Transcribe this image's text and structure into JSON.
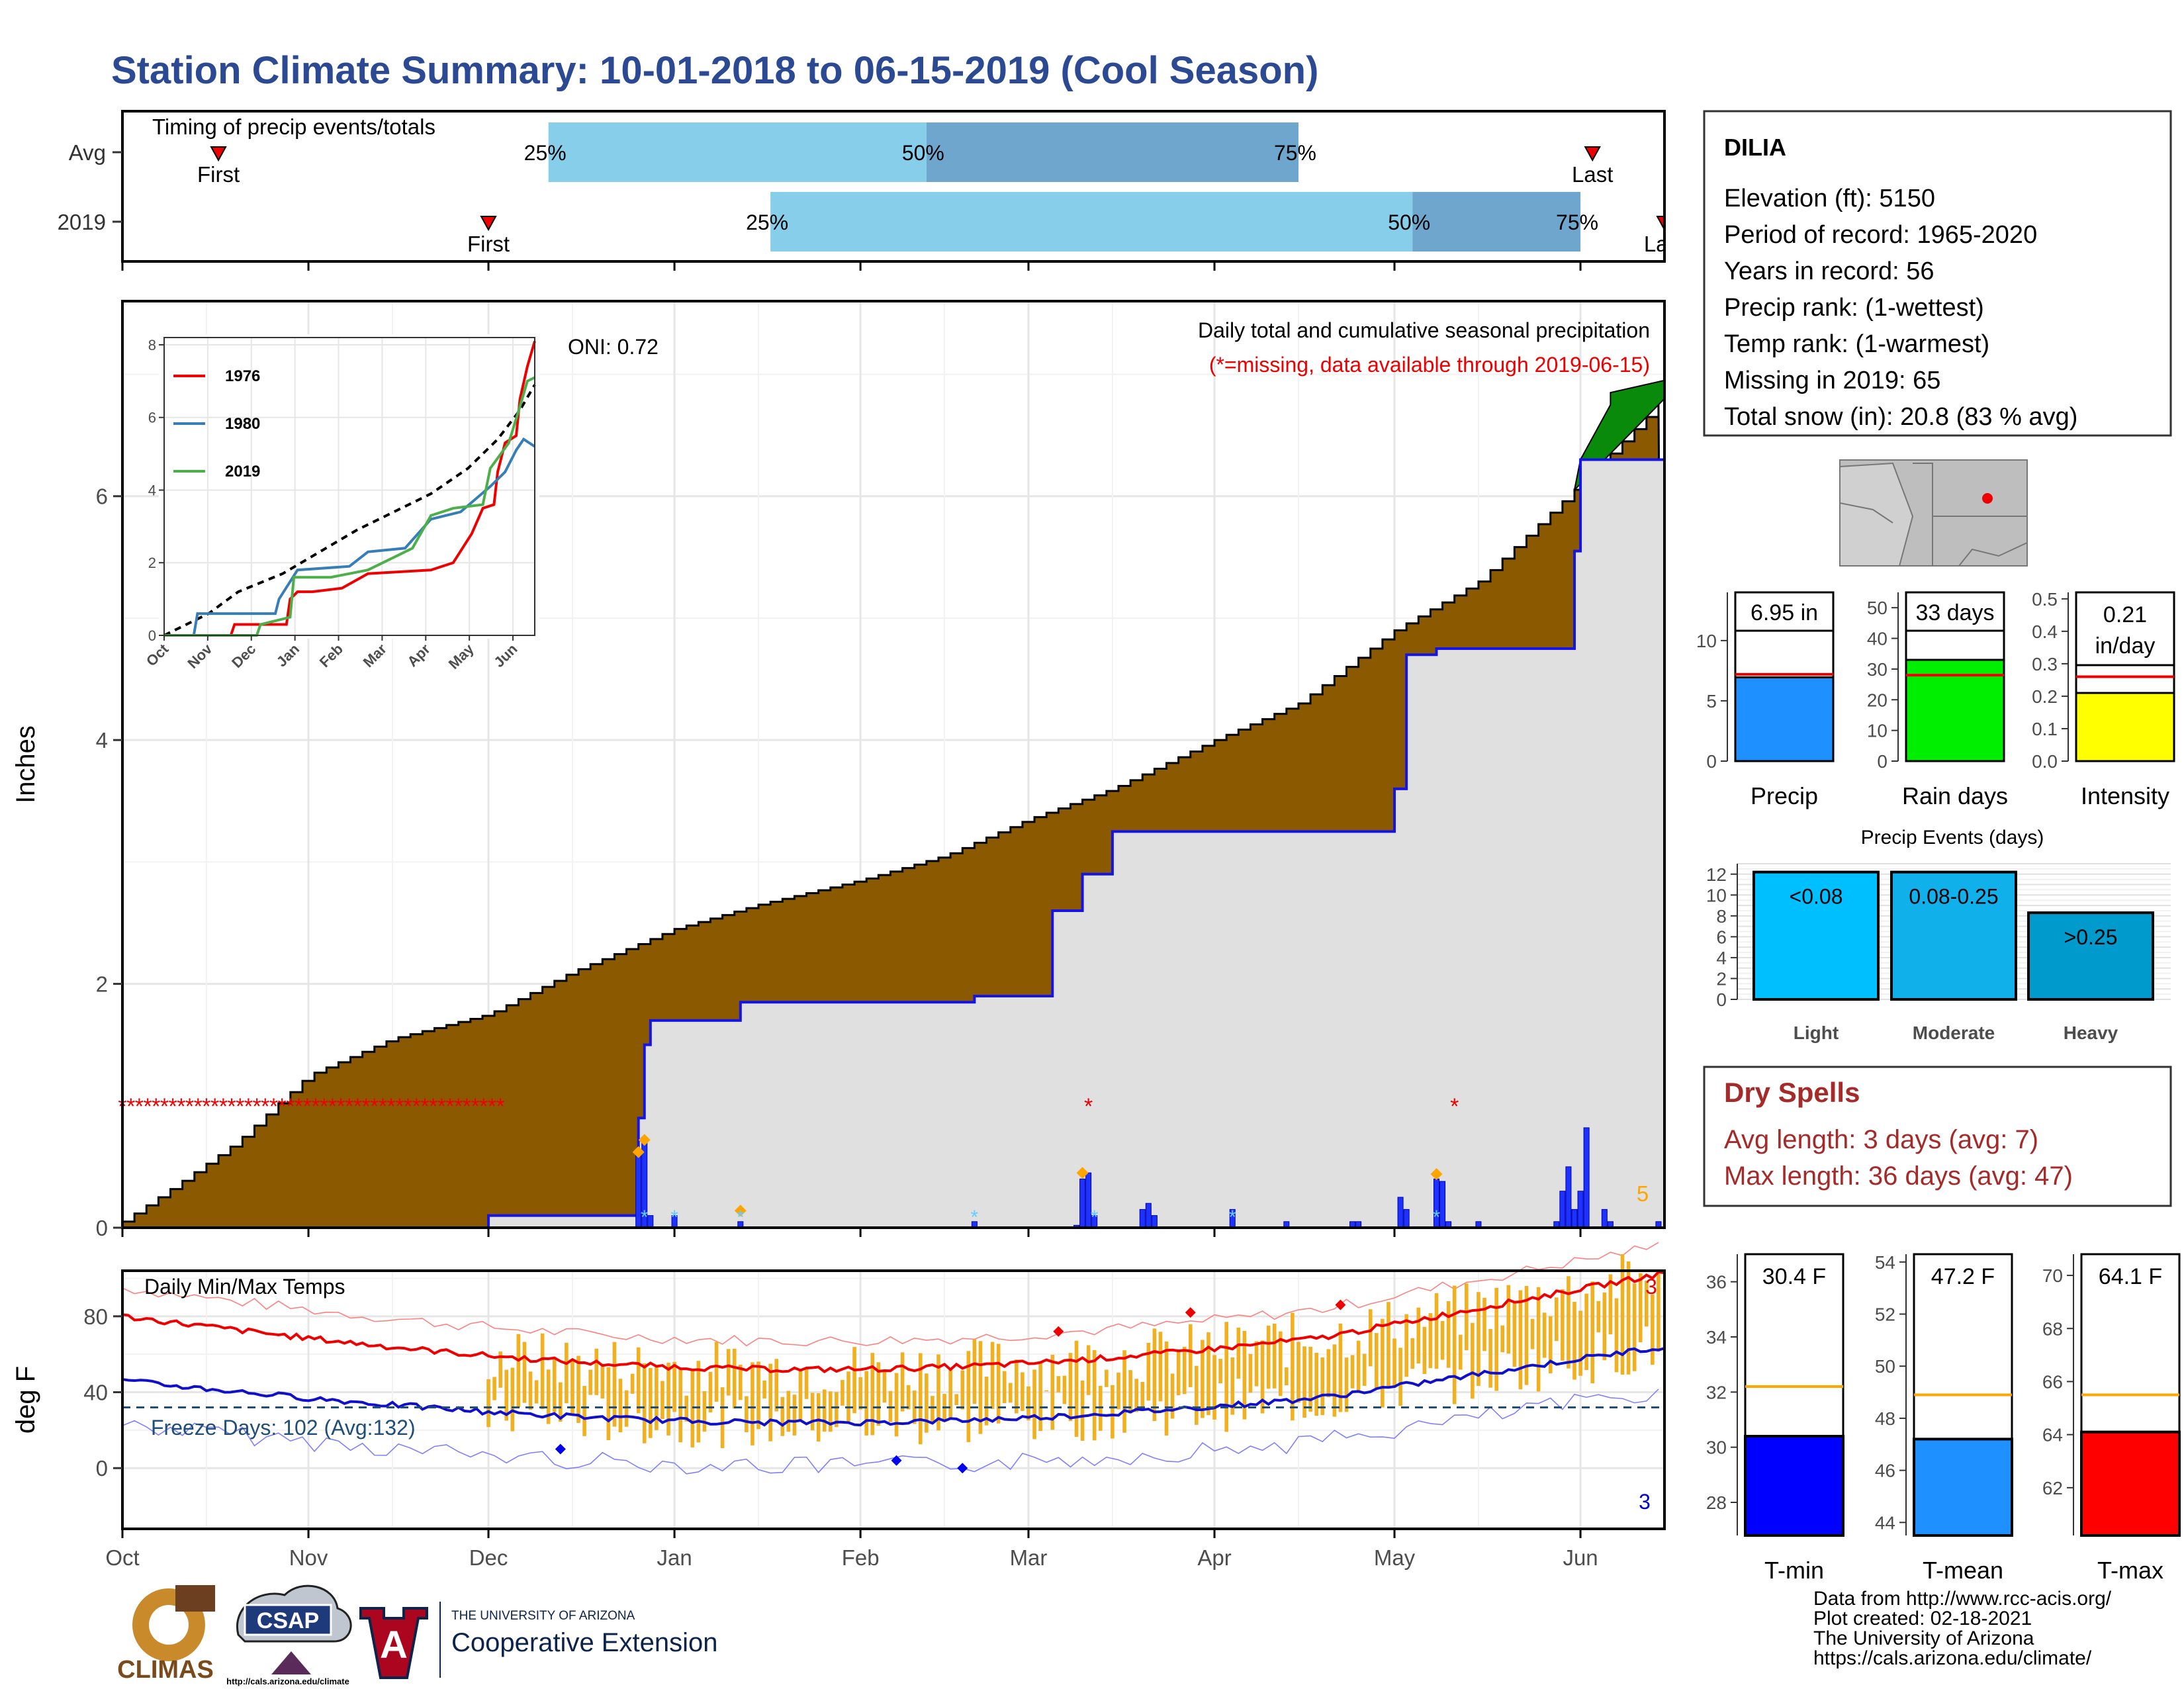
{
  "title": "Station Climate Summary: 10-01-2018 to 06-15-2019 (Cool Season)",
  "colors": {
    "title": "#2b4a93",
    "precip_fill": "#8b5a00",
    "obs_fill": "#e0e0e0",
    "obs_line": "#1414e6",
    "wet_fill": "#0a8a0a",
    "q_light": "#87ceeb",
    "q_dark": "#6ea6cd",
    "dry": "#a52a2a",
    "temp_bar": "#f0b020",
    "max_line": "#ee0000",
    "min_line": "#1010cc"
  },
  "timing": {
    "label": "Timing of precip events/totals",
    "rows": [
      {
        "name": "Avg",
        "first_date": "2018-10-17",
        "first_label": "First",
        "q25": "2018-12-11",
        "q50": "2019-02-12",
        "q75": "2019-04-15",
        "q25_label": "25%",
        "q50_label": "50%",
        "q75_label": "75%",
        "last_date": "2019-06-03",
        "last_label": "Last"
      },
      {
        "name": "2019",
        "first_date": "2018-12-01",
        "first_label": "First",
        "q25": "2019-01-17",
        "q50": "2019-05-04",
        "q75": "2019-06-01",
        "q25_label": "25%",
        "q50_label": "50%",
        "q75_label": "75%",
        "last_date": "2019-06-15",
        "last_label": "Last"
      }
    ]
  },
  "precip_panel": {
    "ylabel": "Inches",
    "oni": "ONI: 0.72",
    "label1": "Daily total and cumulative seasonal precipitation",
    "label2": "(*=missing, data available through 2019-06-15)",
    "count_label": "5",
    "yticks": [
      0,
      2,
      4,
      6
    ]
  },
  "inset": {
    "legend": [
      "1976",
      "1980",
      "2019"
    ],
    "months": [
      "Oct",
      "Nov",
      "Dec",
      "Jan",
      "Feb",
      "Mar",
      "Apr",
      "May",
      "Jun"
    ],
    "yticks": [
      0,
      2,
      4,
      6,
      8
    ]
  },
  "temp_panel": {
    "ylabel": "deg F",
    "title": "Daily Min/Max Temps",
    "freeze": "Freeze Days: 102 (Avg:132)",
    "top_count": "3",
    "bot_count": "3",
    "yticks": [
      0,
      40,
      80
    ]
  },
  "months": [
    "Oct",
    "Nov",
    "Dec",
    "Jan",
    "Feb",
    "Mar",
    "Apr",
    "May",
    "Jun"
  ],
  "station": {
    "name": "DILIA",
    "lines": [
      "Elevation (ft): 5150",
      "Period of record: 1965-2020",
      "Years in record: 56",
      "Precip rank:  (1-wettest)",
      "Temp rank:  (1-warmest)",
      "Missing in 2019: 65",
      "Total snow (in): 20.8 (83 % avg)"
    ]
  },
  "bars": {
    "precip": {
      "label": "Precip",
      "value": 6.95,
      "avg": 7.2,
      "text": "6.95 in",
      "color": "#1e90ff",
      "ymax": 14,
      "ticks": [
        0,
        5,
        10
      ]
    },
    "rain_days": {
      "label": "Rain days",
      "value": 33,
      "avg": 28,
      "text": "33 days",
      "color": "#00ee00",
      "ymax": 55,
      "ticks": [
        0,
        10,
        20,
        30,
        40,
        50
      ]
    },
    "intensity": {
      "label": "Intensity",
      "value": 0.21,
      "avg": 0.26,
      "text1": "0.21",
      "text2": "in/day",
      "color": "#ffff00",
      "ymax": 0.52,
      "ticks": [
        "0.0",
        "0.1",
        "0.2",
        "0.3",
        "0.4",
        "0.5"
      ]
    }
  },
  "events": {
    "title": "Precip Events (days)",
    "categories": [
      "Light",
      "Moderate",
      "Heavy"
    ],
    "labels": [
      "<0.08",
      "0.08-0.25",
      ">0.25"
    ],
    "values": [
      12.2,
      12.2,
      8.3
    ],
    "colors": [
      "#00bfff",
      "#10b0ea",
      "#009acd"
    ],
    "ticks": [
      0,
      2,
      4,
      6,
      8,
      10,
      12
    ]
  },
  "dry": {
    "title": "Dry Spells",
    "avg": "Avg length: 3 days (avg: 7)",
    "max": "Max length: 36 days (avg: 47)"
  },
  "temp_bars": {
    "tmin": {
      "label": "T-min",
      "value": 30.4,
      "avg": 32.2,
      "text": "30.4 F",
      "color": "#0000ff",
      "ymin": 26.8,
      "ymax": 37,
      "ticks": [
        28,
        30,
        32,
        34,
        36
      ]
    },
    "tmean": {
      "label": "T-mean",
      "value": 47.2,
      "avg": 48.9,
      "text": "47.2 F",
      "color": "#1e90ff",
      "ymin": 43.5,
      "ymax": 54.3,
      "ticks": [
        44,
        46,
        48,
        50,
        52,
        54
      ]
    },
    "tmax": {
      "label": "T-max",
      "value": 64.1,
      "avg": 65.5,
      "text": "64.1 F",
      "color": "#ff0000",
      "ymin": 60.2,
      "ymax": 70.8,
      "ticks": [
        62,
        64,
        66,
        68,
        70
      ]
    }
  },
  "footer": {
    "lines": [
      "Data from http://www.rcc-acis.org/",
      "Plot created: 02-18-2021",
      "The University of Arizona",
      "https://cals.arizona.edu/climate/"
    ],
    "climas": "CLIMAS",
    "csap": "CSAP",
    "csap_url": "http://cals.arizona.edu/climate",
    "ua_top": "THE UNIVERSITY OF ARIZONA",
    "ua_bottom": "Cooperative Extension"
  },
  "chart_data": {
    "type": "area",
    "title": "Daily total and cumulative seasonal precipitation",
    "ylabel": "Inches",
    "x_range": [
      "2018-10-01",
      "2019-06-15"
    ],
    "ylim": [
      0,
      7.6
    ],
    "series": [
      {
        "name": "",
        "type": "step",
        "x": [
          "2018-10-01",
          "2018-10-10",
          "2018-10-20",
          "2018-11-01",
          "2018-11-15",
          "2018-12-01",
          "2018-12-15",
          "2019-01-01",
          "2019-01-15",
          "2019-02-01",
          "2019-02-15",
          "2019-03-01",
          "2019-03-15",
          "2019-04-01",
          "2019-04-15",
          "2019-05-01",
          "2019-05-15",
          "2019-06-01",
          "2019-06-15"
        ],
        "y": [
          0.05,
          0.35,
          0.7,
          1.25,
          1.55,
          1.75,
          2.1,
          2.45,
          2.65,
          2.85,
          3.05,
          3.35,
          3.6,
          4.0,
          4.3,
          4.9,
          5.3,
          6.1,
          6.8
        ]
      },
      {
        "name": "2019",
        "type": "step",
        "x": [
          "2018-12-01",
          "2018-12-26",
          "2018-12-27",
          "2018-12-28",
          "2019-01-12",
          "2019-02-20",
          "2019-03-05",
          "2019-03-10",
          "2019-03-15",
          "2019-03-25",
          "2019-04-10",
          "2019-05-01",
          "2019-05-03",
          "2019-05-08",
          "2019-05-31",
          "2019-06-01",
          "2019-06-15"
        ],
        "y": [
          0.1,
          0.9,
          1.5,
          1.7,
          1.85,
          1.9,
          2.6,
          2.9,
          3.25,
          3.25,
          3.25,
          3.6,
          4.7,
          4.75,
          5.55,
          6.3,
          6.95
        ]
      }
    ],
    "daily_precip": {
      "x": [
        "2018-12-26",
        "2018-12-27",
        "2018-12-28",
        "2019-01-01",
        "2019-01-12",
        "2019-02-20",
        "2019-03-09",
        "2019-03-10",
        "2019-03-11",
        "2019-03-12",
        "2019-03-20",
        "2019-03-21",
        "2019-03-22",
        "2019-04-04",
        "2019-04-13",
        "2019-04-24",
        "2019-04-25",
        "2019-05-02",
        "2019-05-03",
        "2019-05-08",
        "2019-05-09",
        "2019-05-10",
        "2019-05-15",
        "2019-05-28",
        "2019-05-29",
        "2019-05-30",
        "2019-05-31",
        "2019-06-01",
        "2019-06-02",
        "2019-06-05",
        "2019-06-06",
        "2019-06-14"
      ],
      "y": [
        0.6,
        0.72,
        0.1,
        0.1,
        0.05,
        0.05,
        0.02,
        0.4,
        0.45,
        0.1,
        0.15,
        0.2,
        0.1,
        0.15,
        0.05,
        0.05,
        0.05,
        0.25,
        0.15,
        0.4,
        0.38,
        0.05,
        0.05,
        0.05,
        0.3,
        0.5,
        0.15,
        0.3,
        0.82,
        0.15,
        0.05,
        0.05
      ]
    },
    "missing_dates": [
      "2018-10-01 to 2018-12-01",
      "2019-03-11",
      "2019-05-11"
    ]
  }
}
